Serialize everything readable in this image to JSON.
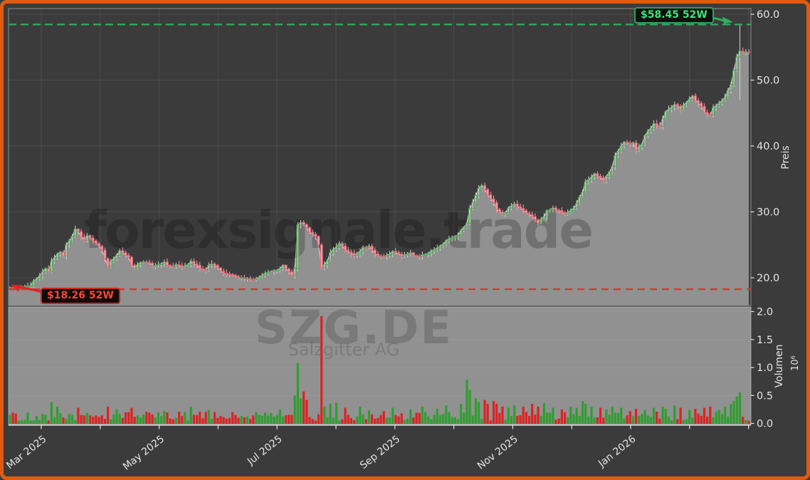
{
  "annotations": {
    "high": {
      "label": "$58.45 52W",
      "value": 58.45
    },
    "low": {
      "label": "$18.26 52W",
      "value": 18.26
    }
  },
  "watermarks": {
    "site": "forexsignale.trade",
    "symbol": "SZG.DE",
    "company": "Salzgitter AG"
  },
  "colors": {
    "frame_orange": "#e05a10",
    "background": "#3b3b3b",
    "panel_gray": "#919191",
    "grid": "rgba(255,255,255,0.09)",
    "spine": "rgba(255,255,255,0.42)",
    "axis_line": "rgba(255,255,255,0.85)",
    "up_edge": "#53a758",
    "down_edge": "#dd5e6e",
    "down_fill": "#f1a3ae",
    "wick_up": "#d2d2d2",
    "wick_down": "#eda2ad",
    "close_line": "#dcdcdc",
    "area_fill": "#919191",
    "vol_up": "#2f9e2f",
    "vol_down": "#de2121",
    "high_line": "#2fae5e",
    "low_line": "#e03131",
    "high_text": "#3be37a",
    "low_text": "#ff4536",
    "axis_text": "#e6e6e6",
    "watermark": "rgba(0,0,0,0.22)"
  },
  "chart_data": {
    "type": "candlestick",
    "instrument": "SZG.DE",
    "company": "Salzgitter AG",
    "price_panel": {
      "ylabel": "Preis",
      "yticks": [
        20,
        30,
        40,
        50,
        60
      ],
      "ytick_labels": [
        "20.0",
        "30.0",
        "40.0",
        "50.0",
        "60.0"
      ],
      "ylim": [
        15.9,
        60.9
      ],
      "high_52w": 58.45,
      "low_52w": 18.26
    },
    "volume_panel": {
      "ylabel": "Volumen",
      "unit": "10⁶",
      "yticks": [
        0,
        0.5,
        1,
        1.5,
        2
      ],
      "ytick_labels": [
        "0.0",
        "0.5",
        "1.0",
        "1.5",
        "2.0"
      ],
      "ylim": [
        0,
        2.13
      ]
    },
    "x_axis": {
      "tick_labels": [
        "Mar 2025",
        "May 2025",
        "Jul 2025",
        "Sep 2025",
        "Nov 2025",
        "Jan 2026"
      ],
      "range": [
        "Feb 2025",
        "Feb 2026"
      ],
      "month_ticks": 13
    },
    "trading_days": 250,
    "close_keypoints": [
      [
        0,
        18.5
      ],
      [
        2,
        18.4
      ],
      [
        4,
        18.55
      ],
      [
        7,
        18.8
      ],
      [
        8,
        19.5
      ],
      [
        10,
        20.3
      ],
      [
        11,
        20.9
      ],
      [
        12,
        21.4
      ],
      [
        13,
        20.9
      ],
      [
        14,
        22.5
      ],
      [
        16,
        23.6
      ],
      [
        17,
        23.9
      ],
      [
        18,
        23.3
      ],
      [
        19,
        25.0
      ],
      [
        21,
        26.3
      ],
      [
        22,
        27.4
      ],
      [
        23,
        27.0
      ],
      [
        24,
        26.2
      ],
      [
        25,
        25.7
      ],
      [
        26,
        26.4
      ],
      [
        28,
        25.6
      ],
      [
        29,
        25.2
      ],
      [
        31,
        24.2
      ],
      [
        32,
        22.9
      ],
      [
        33,
        21.7
      ],
      [
        34,
        22.5
      ],
      [
        36,
        23.4
      ],
      [
        37,
        24.1
      ],
      [
        38,
        23.8
      ],
      [
        40,
        23.1
      ],
      [
        41,
        21.9
      ],
      [
        42,
        21.4
      ],
      [
        43,
        22.0
      ],
      [
        45,
        22.4
      ],
      [
        47,
        22.2
      ],
      [
        48,
        21.8
      ],
      [
        50,
        22.0
      ],
      [
        52,
        22.4
      ],
      [
        53,
        21.9
      ],
      [
        55,
        21.7
      ],
      [
        56,
        22.0
      ],
      [
        58,
        21.6
      ],
      [
        60,
        22.0
      ],
      [
        61,
        22.5
      ],
      [
        63,
        21.9
      ],
      [
        64,
        21.4
      ],
      [
        66,
        21.2
      ],
      [
        67,
        21.9
      ],
      [
        68,
        22.1
      ],
      [
        70,
        21.5
      ],
      [
        71,
        21.0
      ],
      [
        73,
        20.6
      ],
      [
        75,
        20.4
      ],
      [
        76,
        20.2
      ],
      [
        78,
        20.0
      ],
      [
        80,
        19.9
      ],
      [
        82,
        19.7
      ],
      [
        84,
        20.1
      ],
      [
        85,
        20.4
      ],
      [
        87,
        20.8
      ],
      [
        89,
        21.1
      ],
      [
        91,
        21.4
      ],
      [
        92,
        21.9
      ],
      [
        94,
        20.9
      ],
      [
        95,
        20.3
      ],
      [
        96,
        21.4
      ],
      [
        97,
        28.0
      ],
      [
        98,
        28.4
      ],
      [
        100,
        27.6
      ],
      [
        101,
        26.9
      ],
      [
        103,
        26.3
      ],
      [
        104,
        25.0
      ],
      [
        105,
        21.5
      ],
      [
        106,
        22.0
      ],
      [
        107,
        22.6
      ],
      [
        108,
        23.8
      ],
      [
        110,
        24.7
      ],
      [
        111,
        25.2
      ],
      [
        112,
        24.8
      ],
      [
        113,
        24.2
      ],
      [
        115,
        23.7
      ],
      [
        116,
        23.4
      ],
      [
        118,
        24.0
      ],
      [
        119,
        24.6
      ],
      [
        121,
        24.8
      ],
      [
        122,
        24.2
      ],
      [
        123,
        23.6
      ],
      [
        125,
        23.3
      ],
      [
        126,
        23.2
      ],
      [
        128,
        23.6
      ],
      [
        129,
        24.0
      ],
      [
        131,
        23.6
      ],
      [
        132,
        23.3
      ],
      [
        133,
        23.5
      ],
      [
        135,
        23.8
      ],
      [
        136,
        23.4
      ],
      [
        138,
        23.2
      ],
      [
        139,
        23.5
      ],
      [
        141,
        23.7
      ],
      [
        142,
        24.1
      ],
      [
        144,
        24.5
      ],
      [
        146,
        25.1
      ],
      [
        147,
        25.6
      ],
      [
        149,
        26.1
      ],
      [
        151,
        26.5
      ],
      [
        152,
        27.2
      ],
      [
        154,
        28.3
      ],
      [
        155,
        30.5
      ],
      [
        157,
        32.5
      ],
      [
        158,
        33.6
      ],
      [
        159,
        34.0
      ],
      [
        160,
        33.4
      ],
      [
        161,
        32.6
      ],
      [
        163,
        31.4
      ],
      [
        164,
        30.4
      ],
      [
        166,
        29.7
      ],
      [
        167,
        29.9
      ],
      [
        168,
        30.6
      ],
      [
        170,
        31.2
      ],
      [
        171,
        30.8
      ],
      [
        173,
        30.2
      ],
      [
        174,
        29.8
      ],
      [
        176,
        29.3
      ],
      [
        177,
        28.8
      ],
      [
        178,
        28.3
      ],
      [
        180,
        29.3
      ],
      [
        181,
        30.2
      ],
      [
        183,
        30.6
      ],
      [
        184,
        30.3
      ],
      [
        186,
        29.9
      ],
      [
        187,
        29.7
      ],
      [
        189,
        30.2
      ],
      [
        190,
        30.6
      ],
      [
        191,
        31.3
      ],
      [
        193,
        33.0
      ],
      [
        194,
        34.6
      ],
      [
        196,
        35.3
      ],
      [
        197,
        35.8
      ],
      [
        199,
        35.2
      ],
      [
        200,
        34.7
      ],
      [
        201,
        35.4
      ],
      [
        203,
        36.9
      ],
      [
        204,
        38.6
      ],
      [
        206,
        40.0
      ],
      [
        207,
        40.6
      ],
      [
        209,
        40.3
      ],
      [
        210,
        40.5
      ],
      [
        211,
        39.4
      ],
      [
        213,
        40.3
      ],
      [
        214,
        41.6
      ],
      [
        216,
        42.7
      ],
      [
        217,
        43.4
      ],
      [
        219,
        43.0
      ],
      [
        220,
        44.1
      ],
      [
        221,
        45.2
      ],
      [
        223,
        45.9
      ],
      [
        224,
        46.3
      ],
      [
        226,
        45.6
      ],
      [
        227,
        46.2
      ],
      [
        229,
        47.1
      ],
      [
        230,
        47.6
      ],
      [
        231,
        46.9
      ],
      [
        233,
        46.0
      ],
      [
        234,
        45.1
      ],
      [
        236,
        44.7
      ],
      [
        237,
        45.8
      ],
      [
        239,
        46.5
      ],
      [
        240,
        46.9
      ],
      [
        241,
        47.4
      ],
      [
        243,
        49.3
      ],
      [
        244,
        51.5
      ],
      [
        245,
        53.5
      ],
      [
        246,
        54.4
      ],
      [
        247,
        54.2
      ],
      [
        248,
        54.3
      ],
      [
        249,
        54.2
      ]
    ],
    "volume_base": 0.05,
    "volume_spikes": {
      "14": 0.38,
      "16": 0.3,
      "23": 0.28,
      "33": 0.3,
      "36": 0.25,
      "41": 0.28,
      "52": 0.22,
      "61": 0.3,
      "67": 0.24,
      "91": 0.25,
      "96": 0.5,
      "97": 1.08,
      "98": 0.45,
      "99": 0.57,
      "100": 0.42,
      "105": 1.92,
      "106": 0.3,
      "108": 0.35,
      "110": 0.37,
      "113": 0.28,
      "118": 0.3,
      "121": 0.24,
      "126": 0.22,
      "129": 0.28,
      "135": 0.25,
      "139": 0.3,
      "144": 0.26,
      "147": 0.32,
      "152": 0.35,
      "154": 0.78,
      "155": 0.6,
      "157": 0.45,
      "158": 0.38,
      "160": 0.42,
      "161": 0.35,
      "163": 0.4,
      "164": 0.35,
      "166": 0.3,
      "168": 0.28,
      "170": 0.32,
      "173": 0.3,
      "176": 0.35,
      "178": 0.3,
      "180": 0.36,
      "183": 0.28,
      "186": 0.25,
      "189": 0.3,
      "191": 0.28,
      "193": 0.4,
      "194": 0.35,
      "196": 0.3,
      "199": 0.28,
      "201": 0.25,
      "203": 0.3,
      "206": 0.28,
      "209": 0.22,
      "211": 0.26,
      "214": 0.24,
      "217": 0.28,
      "220": 0.3,
      "221": 0.26,
      "224": 0.32,
      "226": 0.28,
      "229": 0.24,
      "231": 0.26,
      "234": 0.28,
      "236": 0.3,
      "239": 0.24,
      "241": 0.3,
      "243": 0.35,
      "244": 0.4,
      "245": 0.48,
      "246": 0.55,
      "247": 0.12,
      "248": 0.06,
      "249": 0.05
    },
    "special_candles": {
      "0": {
        "low": 18.26
      },
      "246": {
        "high": 58.45,
        "low": 47.0
      }
    }
  }
}
